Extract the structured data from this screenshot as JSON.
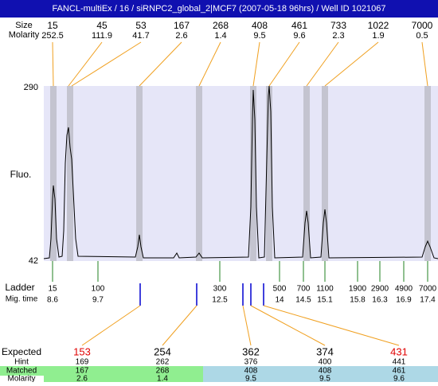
{
  "header": {
    "title": "FANCL-multiEx / 16 / siRNPC2_global_2|MCF7 (2007-05-18 96hrs) / Well ID 1021067"
  },
  "peaks": {
    "row_labels": [
      "Size",
      "Molarity"
    ],
    "sizes": [
      15,
      45,
      53,
      167,
      268,
      408,
      461,
      733,
      1022,
      7000
    ],
    "molarity": [
      252.5,
      111.9,
      41.7,
      2.6,
      1.4,
      9.5,
      9.6,
      2.3,
      1.9,
      0.5
    ]
  },
  "axis": {
    "label": "Fluo.",
    "top": "290",
    "bottom": "42"
  },
  "ladder": {
    "row_labels": [
      "Ladder",
      "Mig. time"
    ],
    "sizes": [
      15,
      100,
      300,
      500,
      700,
      1100,
      1900,
      2900,
      4900,
      7000
    ],
    "times": [
      8.6,
      9.7,
      12.5,
      14,
      14.5,
      15.1,
      15.8,
      16.3,
      16.9,
      17.4
    ]
  },
  "table": {
    "row_labels": [
      "Expected",
      "Hint",
      "Matched",
      "Molarity"
    ],
    "expected": [
      153,
      254,
      362,
      374,
      431
    ],
    "hint": [
      169,
      262,
      376,
      400,
      441
    ],
    "matched": [
      167,
      268,
      408,
      408,
      461
    ],
    "molarity": [
      2.6,
      1.4,
      9.5,
      9.5,
      9.6
    ]
  }
}
